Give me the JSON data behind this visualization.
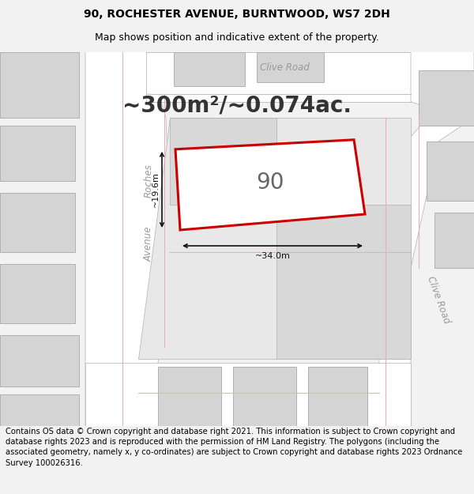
{
  "title_line1": "90, ROCHESTER AVENUE, BURNTWOOD, WS7 2DH",
  "title_line2": "Map shows position and indicative extent of the property.",
  "area_text": "~300m²/~0.074ac.",
  "property_number": "90",
  "dim_width": "~34.0m",
  "dim_height": "~19.6m",
  "road_label_rochester": "Avenue",
  "road_label_rochester2": "Roches",
  "road_label_clive_top": "Clive Road",
  "road_label_clive_right": "Clive Road",
  "footer_text": "Contains OS data © Crown copyright and database right 2021. This information is subject to Crown copyright and database rights 2023 and is reproduced with the permission of HM Land Registry. The polygons (including the associated geometry, namely x, y co-ordinates) are subject to Crown copyright and database rights 2023 Ordnance Survey 100026316.",
  "bg_color": "#f2f2f2",
  "road_fill": "#ffffff",
  "block_fill": "#d4d4d4",
  "property_fill": "#ffffff",
  "property_outline_color": "#cc0000",
  "gray_line": "#b0b0b0",
  "pink_line": "#e8b0b0",
  "dim_color": "#111111",
  "road_text_color": "#999999",
  "title_fontsize": 10,
  "subtitle_fontsize": 9,
  "area_fontsize": 20,
  "number_fontsize": 20,
  "footer_fontsize": 7.2
}
